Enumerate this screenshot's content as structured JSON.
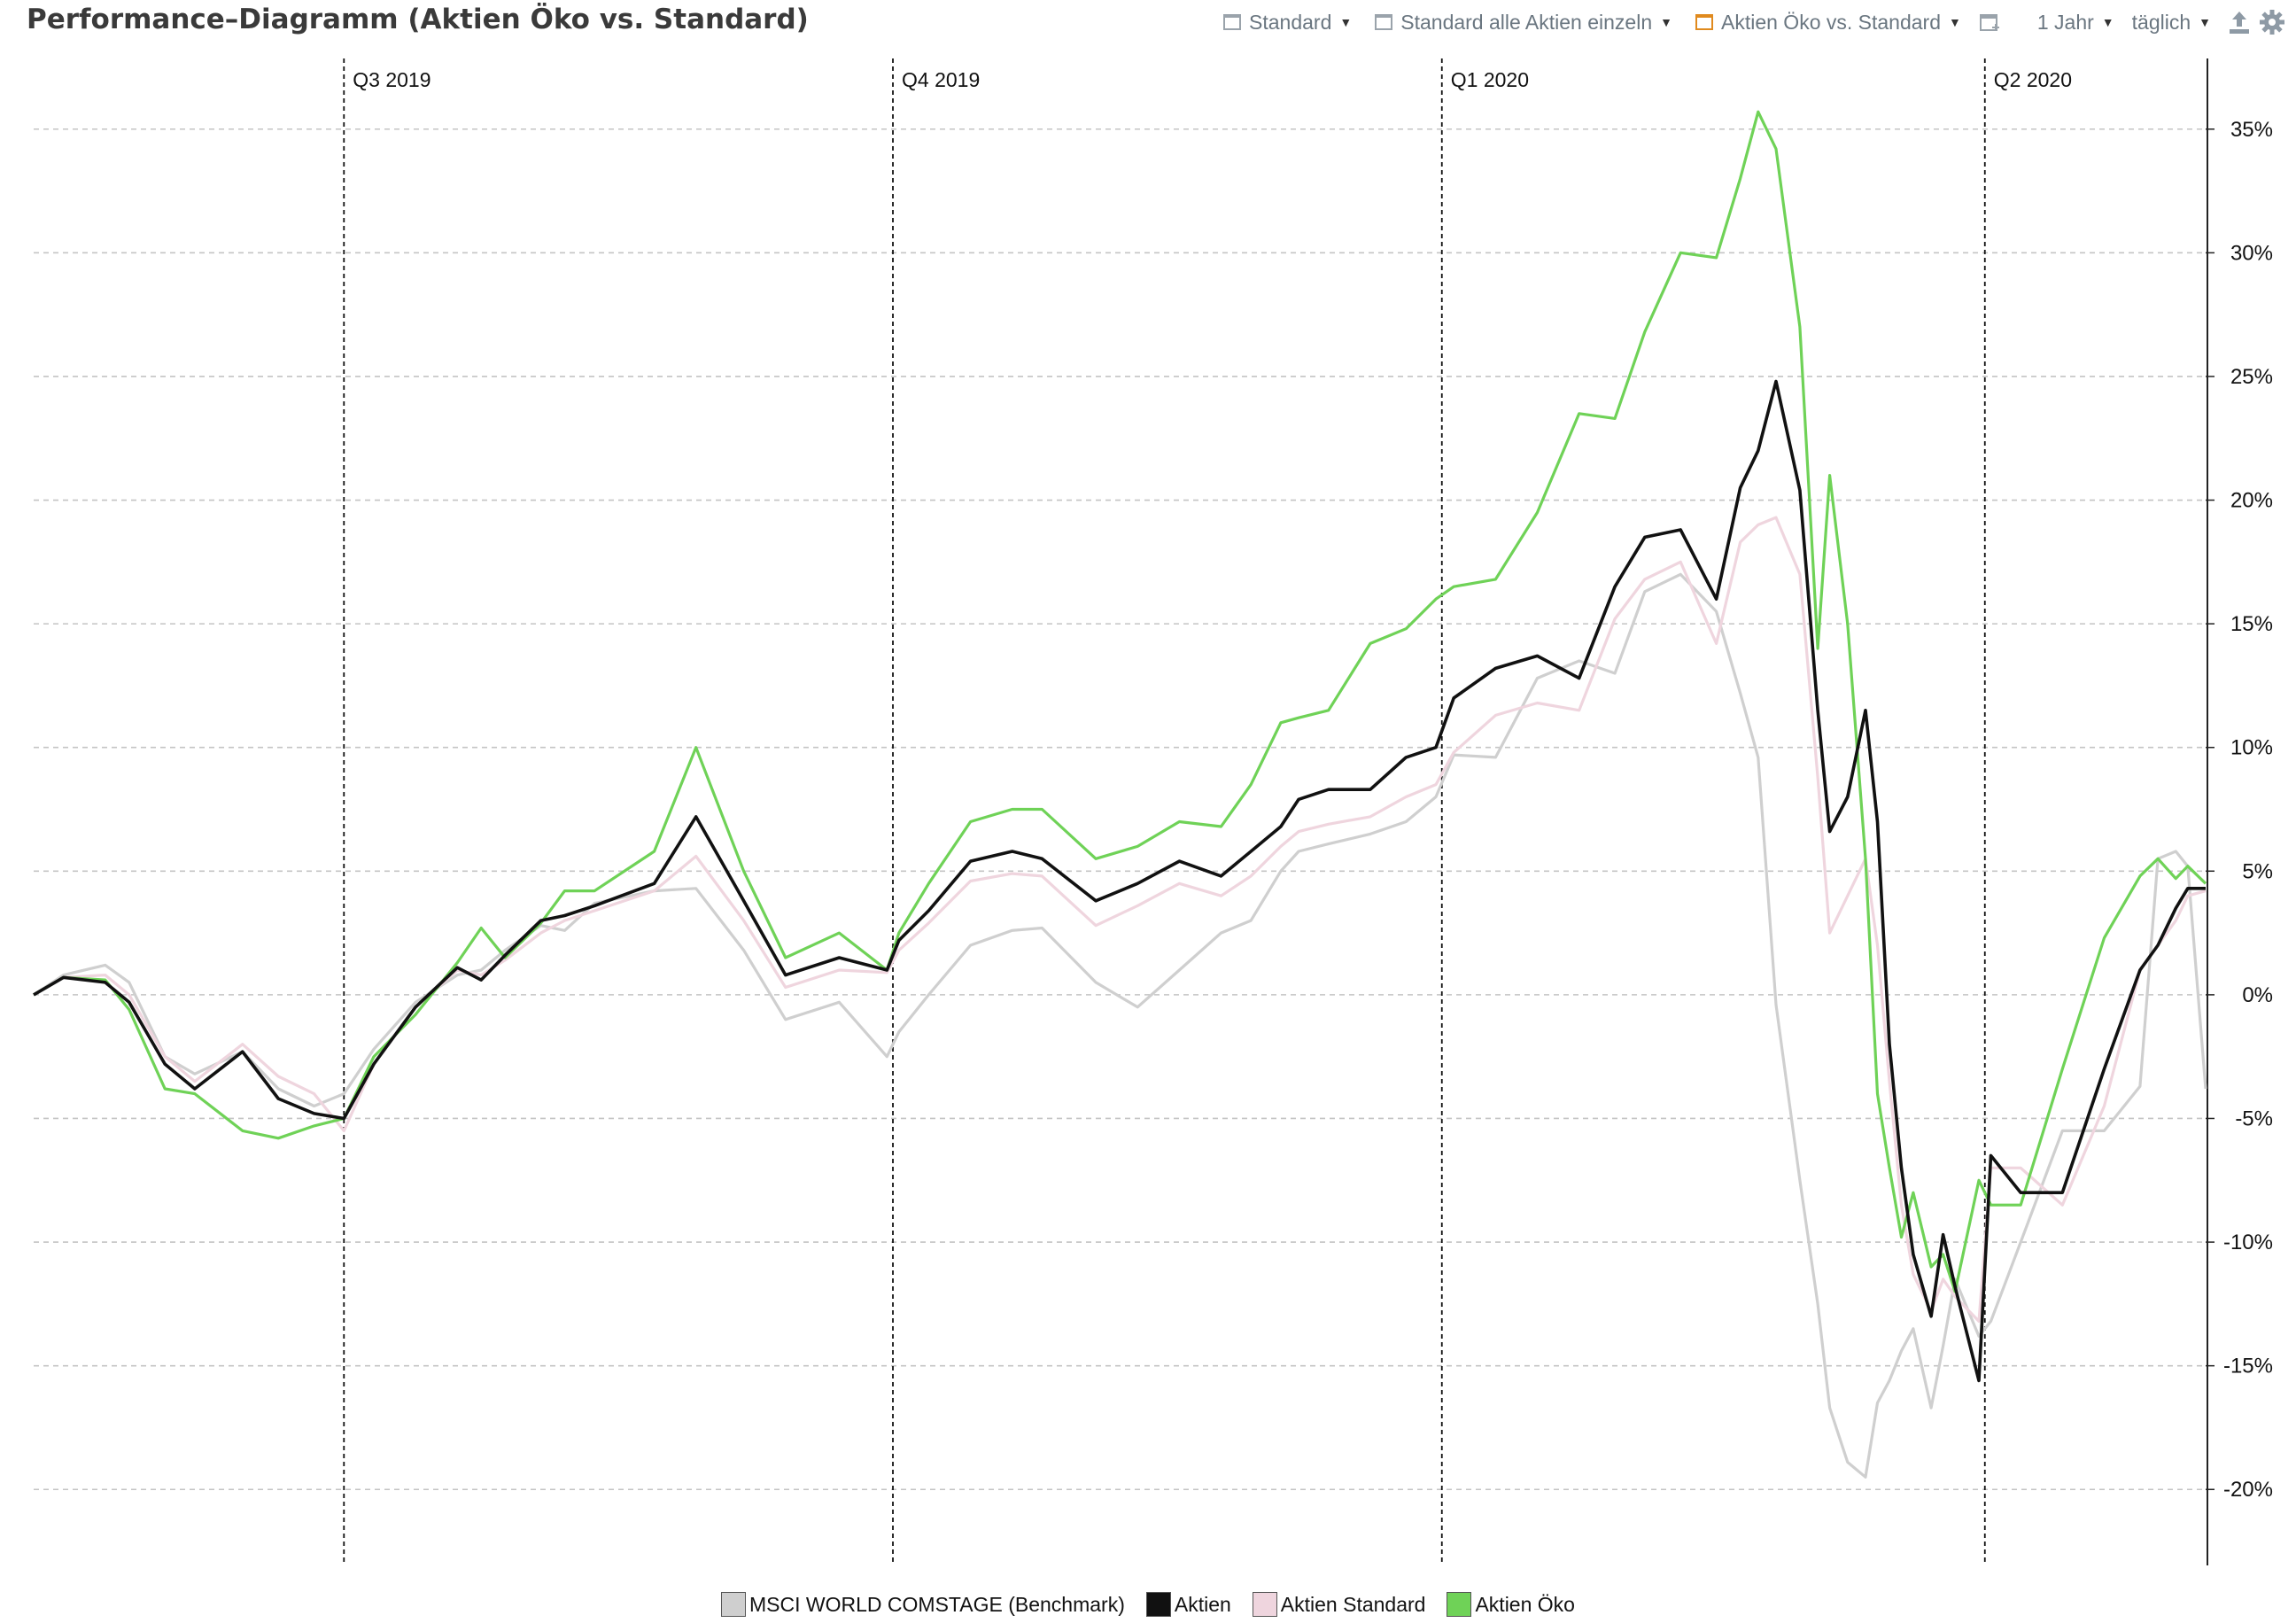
{
  "header": {
    "title": "Performance–Diagramm (Aktien Öko vs. Standard)"
  },
  "toolbar": {
    "views": [
      {
        "label": "Standard",
        "icon": "view-window-icon",
        "color": "#9aa3ab"
      },
      {
        "label": "Standard alle Aktien einzeln",
        "icon": "view-window-icon",
        "color": "#9aa3ab"
      },
      {
        "label": "Aktien Öko vs. Standard",
        "icon": "view-window-icon",
        "color": "#e08a1e"
      }
    ],
    "period": "1 Jahr",
    "interval": "täglich"
  },
  "chart_data": {
    "type": "line",
    "title": "Performance–Diagramm (Aktien Öko vs. Standard)",
    "xlabel": "",
    "ylabel": "",
    "x_range": [
      "2019-05-10",
      "2020-05-08"
    ],
    "ylim": [
      -23,
      38
    ],
    "y_ticks": [
      35,
      30,
      25,
      20,
      15,
      10,
      5,
      0,
      -5,
      -10,
      -15,
      -20
    ],
    "y_tick_labels": [
      "35%",
      "30%",
      "25%",
      "20%",
      "15%",
      "10%",
      "5%",
      "0%",
      "-5%",
      "-10%",
      "-15%",
      "-20%"
    ],
    "y_axis_position": "right",
    "grid": true,
    "legend_position": "bottom",
    "quarter_markers": [
      {
        "label": "Q3 2019",
        "date": "2019-07-01"
      },
      {
        "label": "Q4 2019",
        "date": "2019-10-01"
      },
      {
        "label": "Q1 2020",
        "date": "2020-01-01"
      },
      {
        "label": "Q2 2020",
        "date": "2020-04-01"
      }
    ],
    "series": [
      {
        "name": "MSCI WORLD COMSTAGE (Benchmark)",
        "color": "#cfcfcf",
        "x": [
          "2019-05-10",
          "2019-05-15",
          "2019-05-22",
          "2019-05-26",
          "2019-06-01",
          "2019-06-06",
          "2019-06-14",
          "2019-06-20",
          "2019-06-26",
          "2019-07-01",
          "2019-07-06",
          "2019-07-13",
          "2019-07-20",
          "2019-07-24",
          "2019-07-28",
          "2019-08-03",
          "2019-08-07",
          "2019-08-12",
          "2019-08-22",
          "2019-08-29",
          "2019-09-06",
          "2019-09-13",
          "2019-09-22",
          "2019-09-30",
          "2019-10-02",
          "2019-10-07",
          "2019-10-14",
          "2019-10-21",
          "2019-10-26",
          "2019-11-04",
          "2019-11-11",
          "2019-11-18",
          "2019-11-25",
          "2019-11-30",
          "2019-12-05",
          "2019-12-08",
          "2019-12-13",
          "2019-12-20",
          "2019-12-26",
          "2019-12-31",
          "2020-01-03",
          "2020-01-10",
          "2020-01-17",
          "2020-01-24",
          "2020-01-30",
          "2020-02-04",
          "2020-02-10",
          "2020-02-16",
          "2020-02-20",
          "2020-02-23",
          "2020-02-26",
          "2020-03-01",
          "2020-03-04",
          "2020-03-06",
          "2020-03-09",
          "2020-03-12",
          "2020-03-14",
          "2020-03-16",
          "2020-03-18",
          "2020-03-20",
          "2020-03-23",
          "2020-03-25",
          "2020-03-27",
          "2020-03-31",
          "2020-04-02",
          "2020-04-07",
          "2020-04-14",
          "2020-04-21",
          "2020-04-27",
          "2020-04-30",
          "2020-05-03",
          "2020-05-05",
          "2020-05-08"
        ],
        "values": [
          0,
          0.8,
          1.2,
          0.5,
          -2.5,
          -3.2,
          -2.3,
          -3.8,
          -4.5,
          -4.0,
          -2.2,
          -0.3,
          0.8,
          1.0,
          1.8,
          2.8,
          2.6,
          3.7,
          4.2,
          4.3,
          1.8,
          -1.0,
          -0.3,
          -2.5,
          -1.5,
          0.0,
          2.0,
          2.6,
          2.7,
          0.5,
          -0.5,
          1.0,
          2.5,
          3.0,
          5.0,
          5.8,
          6.1,
          6.5,
          7.0,
          8.0,
          9.7,
          9.6,
          12.8,
          13.5,
          13.0,
          16.3,
          17.0,
          15.5,
          12.2,
          9.6,
          -0.4,
          -7.5,
          -12.5,
          -16.7,
          -18.9,
          -19.5,
          -16.5,
          -15.6,
          -14.4,
          -13.5,
          -16.7,
          -14.2,
          -11.5,
          -13.8,
          -13.2,
          -10.0,
          -5.5,
          -5.5,
          -3.7,
          5.5,
          5.8,
          5.2,
          -3.8
        ]
      },
      {
        "name": "Aktien",
        "color": "#111111",
        "x": [
          "2019-05-10",
          "2019-05-15",
          "2019-05-22",
          "2019-05-26",
          "2019-06-01",
          "2019-06-06",
          "2019-06-14",
          "2019-06-20",
          "2019-06-26",
          "2019-07-01",
          "2019-07-06",
          "2019-07-13",
          "2019-07-20",
          "2019-07-24",
          "2019-07-28",
          "2019-08-03",
          "2019-08-07",
          "2019-08-12",
          "2019-08-22",
          "2019-08-29",
          "2019-09-06",
          "2019-09-13",
          "2019-09-22",
          "2019-09-30",
          "2019-10-02",
          "2019-10-07",
          "2019-10-14",
          "2019-10-21",
          "2019-10-26",
          "2019-11-04",
          "2019-11-11",
          "2019-11-18",
          "2019-11-25",
          "2019-11-30",
          "2019-12-05",
          "2019-12-08",
          "2019-12-13",
          "2019-12-20",
          "2019-12-26",
          "2019-12-31",
          "2020-01-03",
          "2020-01-10",
          "2020-01-17",
          "2020-01-24",
          "2020-01-30",
          "2020-02-04",
          "2020-02-10",
          "2020-02-16",
          "2020-02-20",
          "2020-02-23",
          "2020-02-26",
          "2020-03-01",
          "2020-03-04",
          "2020-03-06",
          "2020-03-09",
          "2020-03-12",
          "2020-03-14",
          "2020-03-16",
          "2020-03-18",
          "2020-03-20",
          "2020-03-23",
          "2020-03-25",
          "2020-03-27",
          "2020-03-31",
          "2020-04-02",
          "2020-04-07",
          "2020-04-14",
          "2020-04-21",
          "2020-04-27",
          "2020-04-30",
          "2020-05-03",
          "2020-05-05",
          "2020-05-08"
        ],
        "values": [
          0,
          0.7,
          0.5,
          -0.3,
          -2.8,
          -3.8,
          -2.3,
          -4.2,
          -4.8,
          -5.0,
          -2.8,
          -0.5,
          1.1,
          0.6,
          1.6,
          3.0,
          3.2,
          3.6,
          4.5,
          7.2,
          3.8,
          0.8,
          1.5,
          1.0,
          2.2,
          3.4,
          5.4,
          5.8,
          5.5,
          3.8,
          4.5,
          5.4,
          4.8,
          5.8,
          6.8,
          7.9,
          8.3,
          8.3,
          9.6,
          10.0,
          12.0,
          13.2,
          13.7,
          12.8,
          16.5,
          18.5,
          18.8,
          16.0,
          20.5,
          22.0,
          24.8,
          20.4,
          11.5,
          6.6,
          8.0,
          11.5,
          7.0,
          -2.0,
          -7.0,
          -10.5,
          -13.0,
          -9.7,
          -11.8,
          -15.6,
          -6.5,
          -8.0,
          -8.0,
          -3.0,
          1.0,
          2.0,
          3.5,
          4.3,
          4.3
        ]
      },
      {
        "name": "Aktien Standard",
        "color": "#efd5de",
        "x": [
          "2019-05-10",
          "2019-05-15",
          "2019-05-22",
          "2019-05-26",
          "2019-06-01",
          "2019-06-06",
          "2019-06-14",
          "2019-06-20",
          "2019-06-26",
          "2019-07-01",
          "2019-07-06",
          "2019-07-13",
          "2019-07-20",
          "2019-07-24",
          "2019-07-28",
          "2019-08-03",
          "2019-08-07",
          "2019-08-12",
          "2019-08-22",
          "2019-08-29",
          "2019-09-06",
          "2019-09-13",
          "2019-09-22",
          "2019-09-30",
          "2019-10-02",
          "2019-10-07",
          "2019-10-14",
          "2019-10-21",
          "2019-10-26",
          "2019-11-04",
          "2019-11-11",
          "2019-11-18",
          "2019-11-25",
          "2019-11-30",
          "2019-12-05",
          "2019-12-08",
          "2019-12-13",
          "2019-12-20",
          "2019-12-26",
          "2019-12-31",
          "2020-01-03",
          "2020-01-10",
          "2020-01-17",
          "2020-01-24",
          "2020-01-30",
          "2020-02-04",
          "2020-02-10",
          "2020-02-16",
          "2020-02-20",
          "2020-02-23",
          "2020-02-26",
          "2020-03-01",
          "2020-03-04",
          "2020-03-06",
          "2020-03-09",
          "2020-03-12",
          "2020-03-14",
          "2020-03-16",
          "2020-03-18",
          "2020-03-20",
          "2020-03-23",
          "2020-03-25",
          "2020-03-27",
          "2020-03-31",
          "2020-04-02",
          "2020-04-07",
          "2020-04-14",
          "2020-04-21",
          "2020-04-27",
          "2020-04-30",
          "2020-05-03",
          "2020-05-05",
          "2020-05-08"
        ],
        "values": [
          0,
          0.7,
          0.8,
          0.0,
          -2.5,
          -3.5,
          -2.0,
          -3.3,
          -4.0,
          -5.5,
          -2.8,
          -0.5,
          1.0,
          0.8,
          1.4,
          2.5,
          3.0,
          3.4,
          4.2,
          5.6,
          3.0,
          0.3,
          1.0,
          0.9,
          1.8,
          2.9,
          4.6,
          4.9,
          4.8,
          2.8,
          3.6,
          4.5,
          4.0,
          4.8,
          6.0,
          6.6,
          6.9,
          7.2,
          8.0,
          8.5,
          9.8,
          11.3,
          11.8,
          11.5,
          15.2,
          16.8,
          17.5,
          14.2,
          18.3,
          19.0,
          19.3,
          17.0,
          8.8,
          2.5,
          4.0,
          5.5,
          2.0,
          -3.5,
          -8.5,
          -11.3,
          -12.8,
          -11.5,
          -12.2,
          -13.2,
          -7.0,
          -7.0,
          -8.5,
          -4.5,
          1.0,
          2.0,
          3.0,
          4.0,
          4.2
        ]
      },
      {
        "name": "Aktien Öko",
        "color": "#6fd257",
        "x": [
          "2019-05-10",
          "2019-05-15",
          "2019-05-22",
          "2019-05-26",
          "2019-06-01",
          "2019-06-06",
          "2019-06-14",
          "2019-06-20",
          "2019-06-26",
          "2019-07-01",
          "2019-07-06",
          "2019-07-13",
          "2019-07-20",
          "2019-07-24",
          "2019-07-28",
          "2019-08-03",
          "2019-08-07",
          "2019-08-12",
          "2019-08-22",
          "2019-08-29",
          "2019-09-06",
          "2019-09-13",
          "2019-09-22",
          "2019-09-30",
          "2019-10-02",
          "2019-10-07",
          "2019-10-14",
          "2019-10-21",
          "2019-10-26",
          "2019-11-04",
          "2019-11-11",
          "2019-11-18",
          "2019-11-25",
          "2019-11-30",
          "2019-12-05",
          "2019-12-08",
          "2019-12-13",
          "2019-12-20",
          "2019-12-26",
          "2019-12-31",
          "2020-01-03",
          "2020-01-10",
          "2020-01-17",
          "2020-01-24",
          "2020-01-30",
          "2020-02-04",
          "2020-02-10",
          "2020-02-16",
          "2020-02-20",
          "2020-02-23",
          "2020-02-26",
          "2020-03-01",
          "2020-03-04",
          "2020-03-06",
          "2020-03-09",
          "2020-03-12",
          "2020-03-14",
          "2020-03-16",
          "2020-03-18",
          "2020-03-20",
          "2020-03-23",
          "2020-03-25",
          "2020-03-27",
          "2020-03-31",
          "2020-04-02",
          "2020-04-07",
          "2020-04-14",
          "2020-04-21",
          "2020-04-27",
          "2020-04-30",
          "2020-05-03",
          "2020-05-05",
          "2020-05-08"
        ],
        "values": [
          0,
          0.7,
          0.6,
          -0.6,
          -3.8,
          -4.0,
          -5.5,
          -5.8,
          -5.3,
          -5.0,
          -2.5,
          -0.8,
          1.3,
          2.7,
          1.5,
          2.9,
          4.2,
          4.2,
          5.8,
          10.0,
          5.0,
          1.5,
          2.5,
          1.0,
          2.5,
          4.5,
          7.0,
          7.5,
          7.5,
          5.5,
          6.0,
          7.0,
          6.8,
          8.5,
          11.0,
          11.2,
          11.5,
          14.2,
          14.8,
          16.0,
          16.5,
          16.8,
          19.5,
          23.5,
          23.3,
          26.8,
          30.0,
          29.8,
          33.0,
          35.7,
          34.2,
          27.0,
          14.0,
          21.0,
          15.0,
          5.5,
          -4.0,
          -7.0,
          -9.8,
          -8.0,
          -11.0,
          -10.5,
          -12.0,
          -7.5,
          -8.5,
          -8.5,
          -3.0,
          2.3,
          4.8,
          5.5,
          4.7,
          5.2,
          4.5
        ]
      }
    ]
  }
}
